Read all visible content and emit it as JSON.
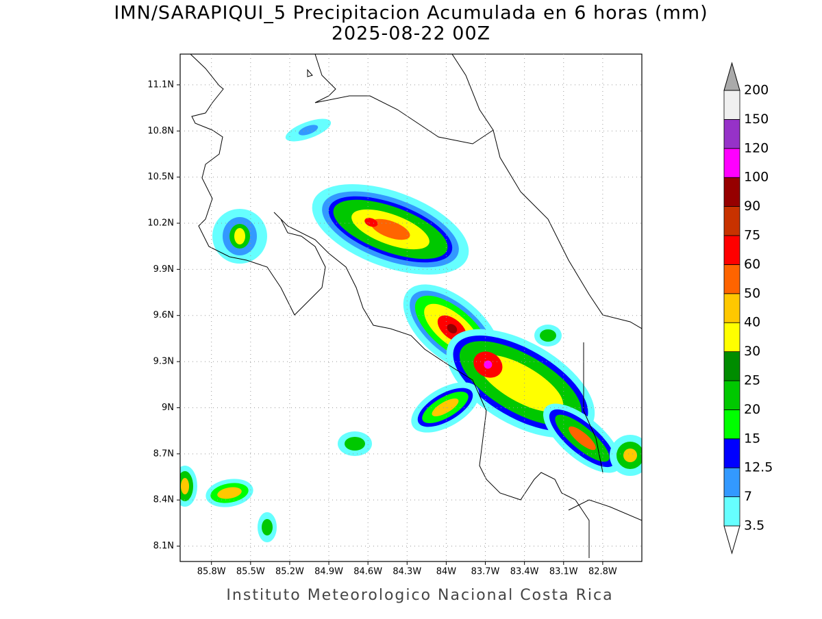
{
  "title": "IMN/SARAPIQUI_5 Precipitacion Acumulada en 6 horas (mm)",
  "subtitle": "2025-08-22 00Z",
  "footer": "Instituto Meteorologico Nacional Costa Rica",
  "map": {
    "xlim": [
      -86.04,
      -82.5
    ],
    "ylim": [
      8.0,
      11.3
    ],
    "xticks": [
      {
        "value": -85.8,
        "label": "85.8W"
      },
      {
        "value": -85.5,
        "label": "85.5W"
      },
      {
        "value": -85.2,
        "label": "85.2W"
      },
      {
        "value": -84.9,
        "label": "84.9W"
      },
      {
        "value": -84.6,
        "label": "84.6W"
      },
      {
        "value": -84.3,
        "label": "84.3W"
      },
      {
        "value": -84,
        "label": "84W"
      },
      {
        "value": -83.7,
        "label": "83.7W"
      },
      {
        "value": -83.4,
        "label": "83.4W"
      },
      {
        "value": -83.1,
        "label": "83.1W"
      },
      {
        "value": -82.8,
        "label": "82.8W"
      }
    ],
    "yticks": [
      {
        "value": 8.1,
        "label": "8.1N"
      },
      {
        "value": 8.4,
        "label": "8.4N"
      },
      {
        "value": 8.7,
        "label": "8.7N"
      },
      {
        "value": 9,
        "label": "9N"
      },
      {
        "value": 9.3,
        "label": "9.3N"
      },
      {
        "value": 9.6,
        "label": "9.6N"
      },
      {
        "value": 9.9,
        "label": "9.9N"
      },
      {
        "value": 10.2,
        "label": "10.2N"
      },
      {
        "value": 10.5,
        "label": "10.5N"
      },
      {
        "value": 10.8,
        "label": "10.8N"
      },
      {
        "value": 11.1,
        "label": "11.1N"
      }
    ],
    "grid": true
  },
  "colorbar": {
    "levels": [
      3.5,
      7,
      12.5,
      15,
      20,
      25,
      30,
      40,
      50,
      60,
      75,
      90,
      100,
      120,
      150,
      200
    ],
    "colors": [
      "#ffffff",
      "#66ffff",
      "#3399ff",
      "#0000ff",
      "#00ff00",
      "#00c800",
      "#008c00",
      "#ffff00",
      "#ffc800",
      "#ff6400",
      "#ff0000",
      "#c83200",
      "#960000",
      "#ff00ff",
      "#9632c8",
      "#f0f0f0",
      "#aaaaaa"
    ]
  }
}
